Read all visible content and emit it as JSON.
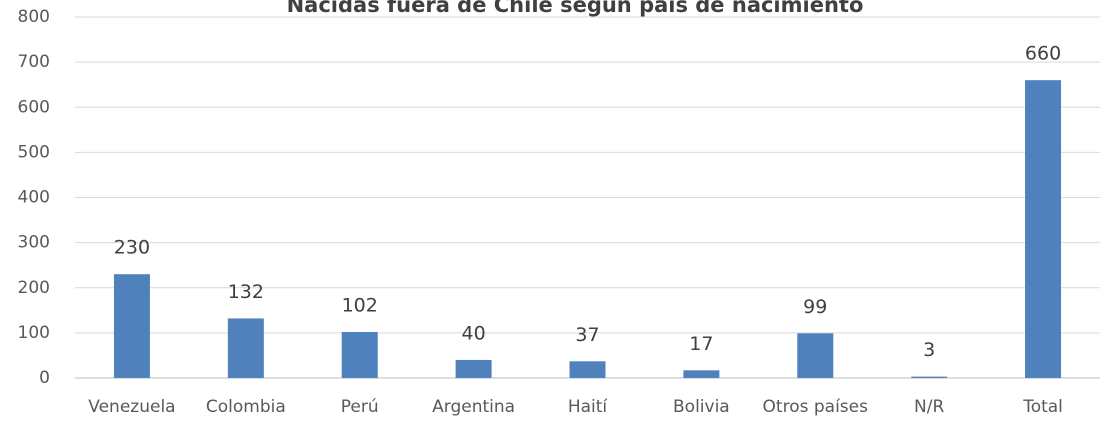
{
  "chart_data": {
    "type": "bar",
    "title": "Nacidas fuera de Chile según país de nacimiento",
    "categories": [
      "Venezuela",
      "Colombia",
      "Perú",
      "Argentina",
      "Haití",
      "Bolivia",
      "Otros países",
      "N/R",
      "Total"
    ],
    "values": [
      230,
      132,
      102,
      40,
      37,
      17,
      99,
      3,
      660
    ],
    "color": "#4f81bd",
    "ylim": [
      0,
      800
    ],
    "yticks": [
      0,
      100,
      200,
      300,
      400,
      500,
      600,
      700,
      800
    ],
    "grid": true
  }
}
